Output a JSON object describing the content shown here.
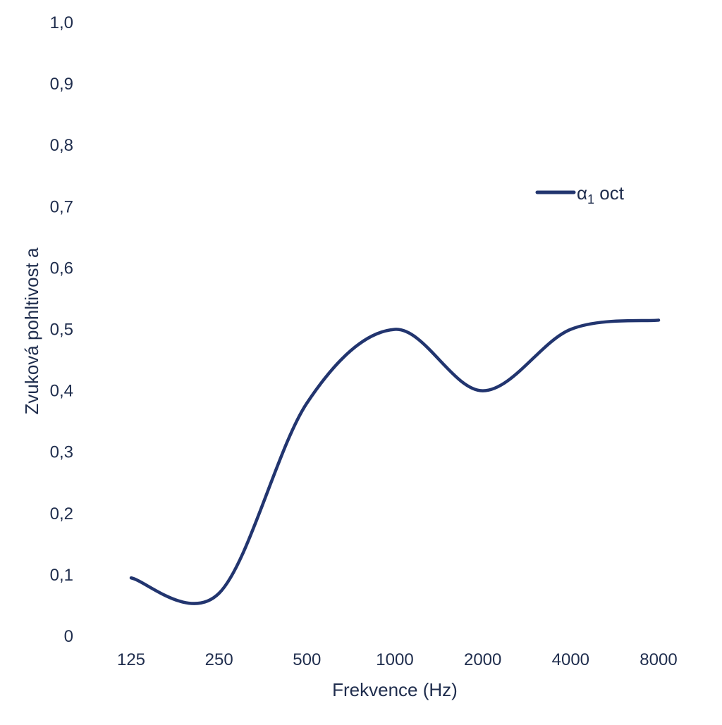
{
  "chart_data": {
    "type": "line",
    "title": "",
    "xlabel": "Frekvence (Hz)",
    "ylabel": "Zvuková pohltivost a",
    "categories": [
      "125",
      "250",
      "500",
      "1000",
      "2000",
      "4000",
      "8000"
    ],
    "yticks": [
      "0",
      "0,1",
      "0,2",
      "0,3",
      "0,4",
      "0,5",
      "0,6",
      "0,7",
      "0,8",
      "0,9",
      "1,0"
    ],
    "ylim": [
      0,
      1.0
    ],
    "grid": false,
    "legend_position": "top-right",
    "series": [
      {
        "name": "α",
        "name_subscript": "1",
        "name_suffix": " oct",
        "color": "#22356f",
        "values": [
          0.095,
          0.07,
          0.38,
          0.5,
          0.4,
          0.5,
          0.515
        ]
      }
    ]
  }
}
